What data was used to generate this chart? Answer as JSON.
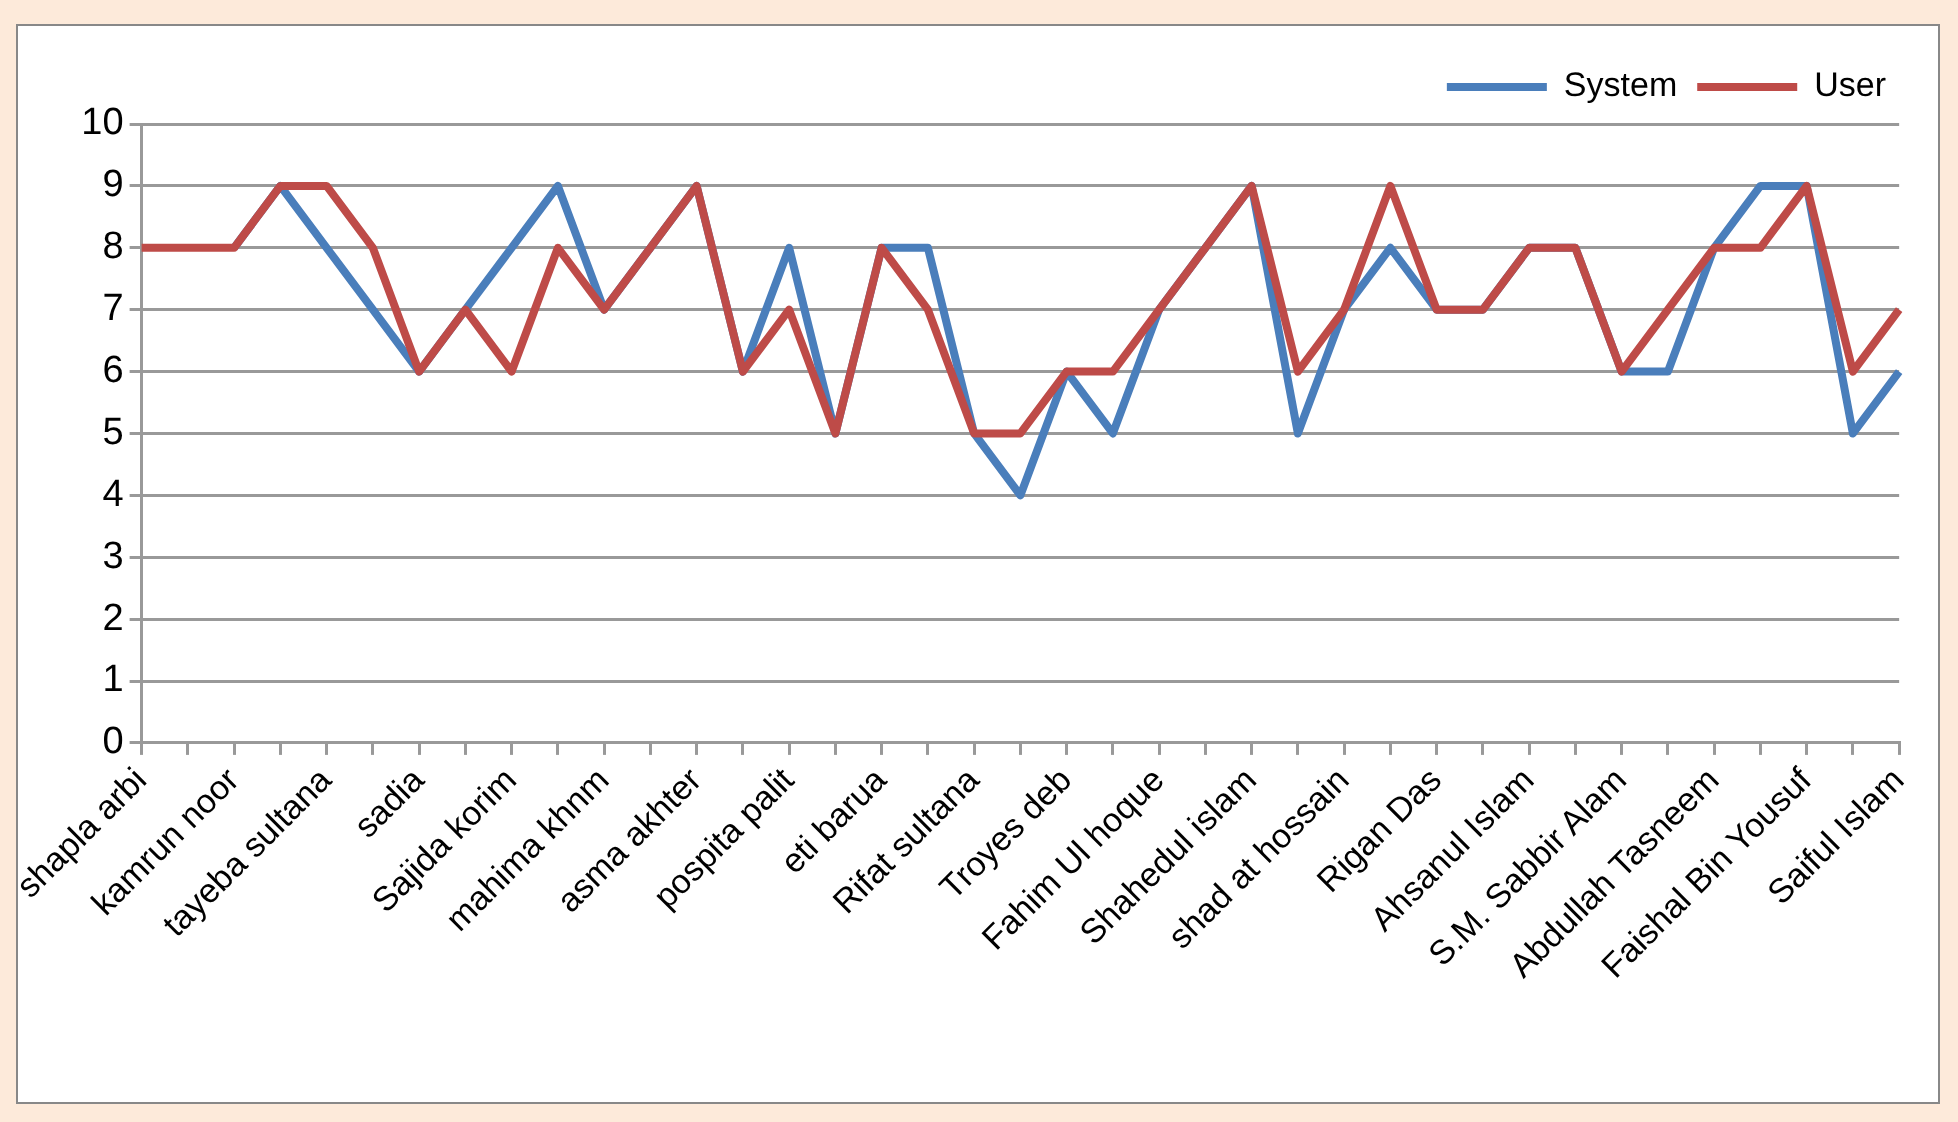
{
  "chart_data": {
    "type": "line",
    "categories": [
      "shapla arbi",
      null,
      "kamrun noor",
      null,
      "tayeba sultana",
      null,
      "sadia",
      null,
      "Sajida korim",
      null,
      "mahima khnm",
      null,
      "asma akhter",
      null,
      "pospita palit",
      null,
      "eti barua",
      null,
      "Rifat sultana",
      null,
      "Troyes deb",
      null,
      "Fahim Ul hoque",
      null,
      "Shahedul islam",
      null,
      "shad at hossain",
      null,
      "Rigan Das",
      null,
      "Ahsanul Islam",
      null,
      "S.M. Sabbir Alam",
      null,
      "Abdullah Tasneem",
      null,
      "Faishal Bin Yousuf",
      null,
      "Saiful Islam"
    ],
    "series": [
      {
        "name": "System",
        "color": "#4a7ebb",
        "values": [
          null,
          null,
          8,
          9,
          8,
          7,
          6,
          7,
          8,
          9,
          7,
          8,
          9,
          6,
          8,
          5,
          8,
          8,
          5,
          4,
          6,
          5,
          7,
          8,
          9,
          5,
          7,
          8,
          7,
          7,
          8,
          8,
          6,
          6,
          8,
          9,
          9,
          5,
          6
        ]
      },
      {
        "name": "User",
        "color": "#be4b48",
        "values": [
          8,
          8,
          8,
          9,
          9,
          8,
          6,
          7,
          6,
          8,
          7,
          8,
          9,
          6,
          7,
          5,
          8,
          7,
          5,
          5,
          6,
          6,
          7,
          8,
          9,
          6,
          7,
          9,
          7,
          7,
          8,
          8,
          6,
          7,
          8,
          8,
          9,
          6,
          7
        ]
      }
    ],
    "ylim": [
      0,
      10
    ],
    "yticks": [
      0,
      1,
      2,
      3,
      4,
      5,
      6,
      7,
      8,
      9,
      10
    ],
    "grid": "y",
    "legend": "top",
    "marker": "none",
    "line_style": "solid"
  }
}
